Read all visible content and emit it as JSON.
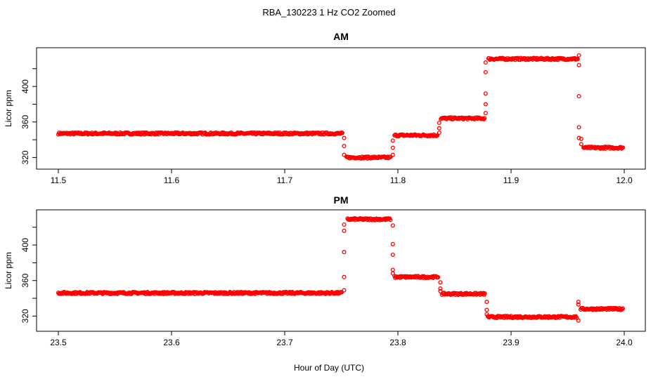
{
  "figure": {
    "title": "RBA_130223  1 Hz CO2 Zoomed",
    "xlabel": "Hour of Day (UTC)",
    "point_color": "#ff0000",
    "point_symbol": "open-circle"
  },
  "chart_data": [
    {
      "type": "scatter",
      "title": "AM",
      "ylabel": "Licor ppm",
      "xlim": [
        11.5,
        12.0
      ],
      "ylim": [
        314,
        442
      ],
      "xticks": [
        "11.5",
        "11.6",
        "11.7",
        "11.8",
        "11.9",
        "12.0"
      ],
      "yticks": [
        "320",
        "360",
        "400"
      ],
      "segments": [
        {
          "x0": 11.5,
          "x1": 11.7515,
          "y": 347
        },
        {
          "x0": 11.7545,
          "x1": 11.794,
          "y": 320
        },
        {
          "x0": 11.797,
          "x1": 11.835,
          "y": 345
        },
        {
          "x0": 11.838,
          "x1": 11.877,
          "y": 364
        },
        {
          "x0": 11.88,
          "x1": 11.959,
          "y": 431
        },
        {
          "x0": 11.964,
          "x1": 11.999,
          "y": 331
        }
      ],
      "transitions": [
        {
          "x": 11.7525,
          "y": [
            342,
            333,
            323
          ]
        },
        {
          "x": 11.7955,
          "y": [
            323,
            331,
            339
          ]
        },
        {
          "x": 11.8365,
          "y": [
            348,
            353,
            359
          ]
        },
        {
          "x": 11.8775,
          "y": [
            370,
            380,
            392,
            416,
            427
          ]
        },
        {
          "x": 11.96,
          "y": [
            435,
            424,
            389,
            354,
            342
          ]
        },
        {
          "x": 11.962,
          "y": [
            341,
            335
          ]
        }
      ]
    },
    {
      "type": "scatter",
      "title": "PM",
      "ylabel": "Licor ppm",
      "xlim": [
        23.5,
        24.0
      ],
      "ylim": [
        310,
        438
      ],
      "xticks": [
        "23.5",
        "23.6",
        "23.7",
        "23.8",
        "23.9",
        "24.0"
      ],
      "yticks": [
        "320",
        "360",
        "400"
      ],
      "segments": [
        {
          "x0": 23.5,
          "x1": 23.7505,
          "y": 346
        },
        {
          "x0": 23.7555,
          "x1": 23.794,
          "y": 429
        },
        {
          "x0": 23.797,
          "x1": 23.836,
          "y": 364
        },
        {
          "x0": 23.839,
          "x1": 23.877,
          "y": 345
        },
        {
          "x0": 23.8795,
          "x1": 23.958,
          "y": 319
        },
        {
          "x0": 23.9615,
          "x1": 23.999,
          "y": 328
        }
      ],
      "transitions": [
        {
          "x": 23.7525,
          "y": [
            349,
            364,
            392,
            416,
            423
          ]
        },
        {
          "x": 23.7955,
          "y": [
            422,
            401,
            389,
            372,
            368
          ]
        },
        {
          "x": 23.8375,
          "y": [
            358,
            351,
            348
          ]
        },
        {
          "x": 23.8785,
          "y": [
            336,
            327,
            322
          ]
        },
        {
          "x": 23.9595,
          "y": [
            315,
            333,
            336
          ]
        }
      ]
    }
  ]
}
